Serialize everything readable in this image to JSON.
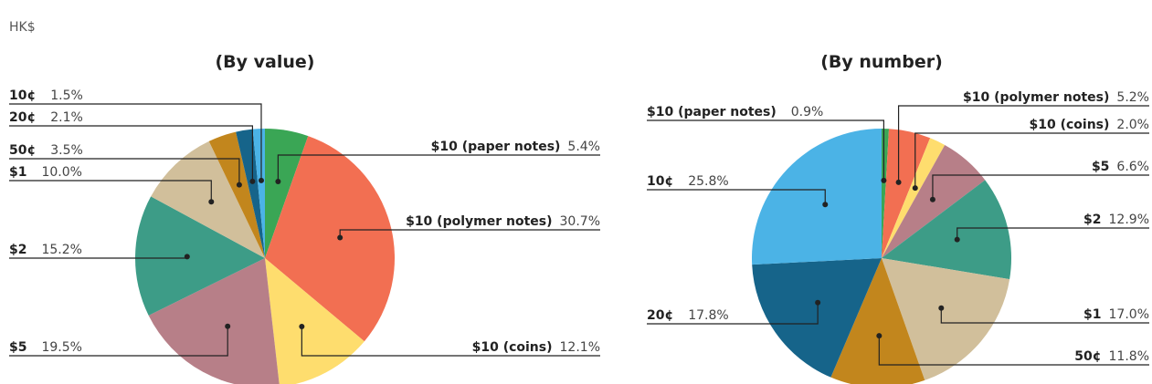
{
  "header": {
    "text": "HK$"
  },
  "chart_data": [
    {
      "type": "pie",
      "title": "(By value)",
      "categories": [
        "$10 (paper notes)",
        "$10 (polymer notes)",
        "$10 (coins)",
        "$5",
        "$2",
        "$1",
        "50¢",
        "20¢",
        "10¢"
      ],
      "values": [
        5.4,
        30.7,
        12.1,
        19.5,
        15.2,
        10.0,
        3.5,
        2.1,
        1.5
      ],
      "value_labels": [
        "5.4%",
        "30.7%",
        "12.1%",
        "19.5%",
        "15.2%",
        "10.0%",
        "3.5%",
        "2.1%",
        "1.5%"
      ],
      "colors": [
        "#3aa655",
        "#f26f52",
        "#fedd6e",
        "#b77f88",
        "#3d9c87",
        "#d1bf9b",
        "#c2861d",
        "#16648a",
        "#4bb3e6"
      ]
    },
    {
      "type": "pie",
      "title": "(By number)",
      "categories": [
        "$10 (paper notes)",
        "$10 (polymer notes)",
        "$10 (coins)",
        "$5",
        "$2",
        "$1",
        "50¢",
        "20¢",
        "10¢"
      ],
      "values": [
        0.9,
        5.2,
        2.0,
        6.6,
        12.9,
        17.0,
        11.8,
        17.8,
        25.8
      ],
      "value_labels": [
        "0.9%",
        "5.2%",
        "2.0%",
        "6.6%",
        "12.9%",
        "17.0%",
        "11.8%",
        "17.8%",
        "25.8%"
      ],
      "colors": [
        "#3aa655",
        "#f26f52",
        "#fedd6e",
        "#b77f88",
        "#3d9c87",
        "#d1bf9b",
        "#c2861d",
        "#16648a",
        "#4bb3e6"
      ]
    }
  ]
}
